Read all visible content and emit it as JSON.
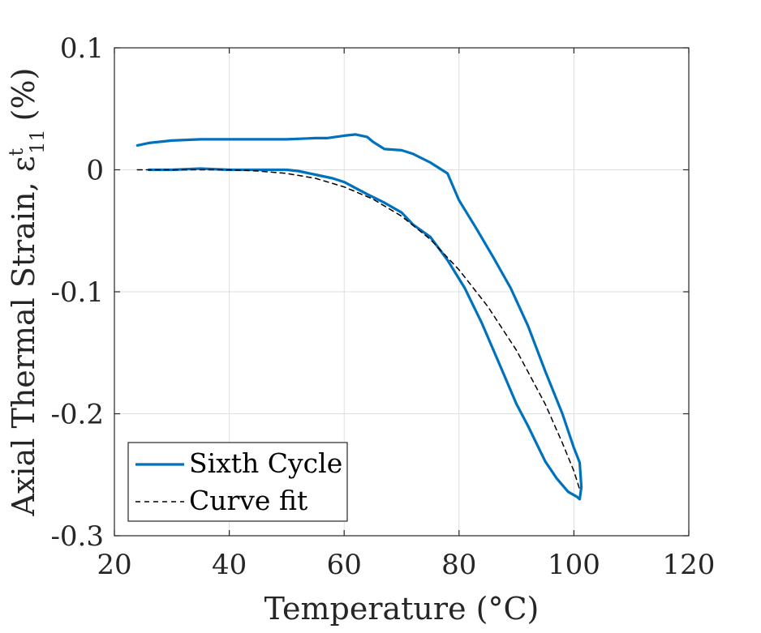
{
  "chart_data": {
    "type": "line",
    "xlabel": "Temperature (°C)",
    "ylabel": "Axial Thermal Strain, ε",
    "ylabel_sup": "t",
    "ylabel_sub": "11",
    "ylabel_unit": "(%)",
    "xlim": [
      20,
      120
    ],
    "ylim": [
      -0.3,
      0.1
    ],
    "xticks": [
      20,
      40,
      60,
      80,
      100,
      120
    ],
    "xtick_labels": [
      "20",
      "40",
      "60",
      "80",
      "100",
      "120"
    ],
    "yticks": [
      -0.3,
      -0.2,
      -0.1,
      0,
      0.1
    ],
    "ytick_labels": [
      "-0.3",
      "-0.2",
      "-0.1",
      "0",
      "0.1"
    ],
    "grid": true,
    "legend_position": "bottom-left",
    "series": [
      {
        "name": "Sixth Cycle",
        "style": "solid",
        "color": "#0072BD",
        "x": [
          24,
          26,
          30,
          35,
          40,
          45,
          50,
          55,
          57,
          60,
          62,
          64,
          65,
          67,
          70,
          72,
          75,
          78,
          80,
          83,
          86,
          89,
          92,
          95,
          98,
          100,
          101,
          101.3,
          101,
          100.5,
          99,
          97,
          95,
          92,
          90,
          87,
          84,
          81,
          78,
          75,
          72,
          70,
          67,
          64,
          60,
          58,
          55,
          52,
          50,
          45,
          40,
          35,
          30,
          26
        ],
        "y": [
          0.02,
          0.022,
          0.024,
          0.025,
          0.025,
          0.025,
          0.025,
          0.026,
          0.026,
          0.028,
          0.029,
          0.027,
          0.023,
          0.017,
          0.016,
          0.013,
          0.006,
          -0.003,
          -0.025,
          -0.048,
          -0.072,
          -0.097,
          -0.128,
          -0.165,
          -0.2,
          -0.228,
          -0.24,
          -0.26,
          -0.27,
          -0.268,
          -0.264,
          -0.253,
          -0.239,
          -0.21,
          -0.192,
          -0.159,
          -0.126,
          -0.097,
          -0.074,
          -0.055,
          -0.045,
          -0.035,
          -0.027,
          -0.02,
          -0.01,
          -0.007,
          -0.004,
          -0.001,
          0,
          0,
          0,
          0.001,
          0,
          0
        ]
      },
      {
        "name": "Curve fit",
        "style": "dashed",
        "color": "#000000",
        "x": [
          24,
          30,
          35,
          40,
          45,
          50,
          55,
          60,
          65,
          70,
          75,
          80,
          85,
          90,
          95,
          98,
          100,
          101
        ],
        "y": [
          0,
          0,
          0,
          0,
          -0.001,
          -0.003,
          -0.007,
          -0.014,
          -0.024,
          -0.038,
          -0.057,
          -0.082,
          -0.112,
          -0.148,
          -0.192,
          -0.224,
          -0.247,
          -0.262
        ]
      }
    ]
  }
}
